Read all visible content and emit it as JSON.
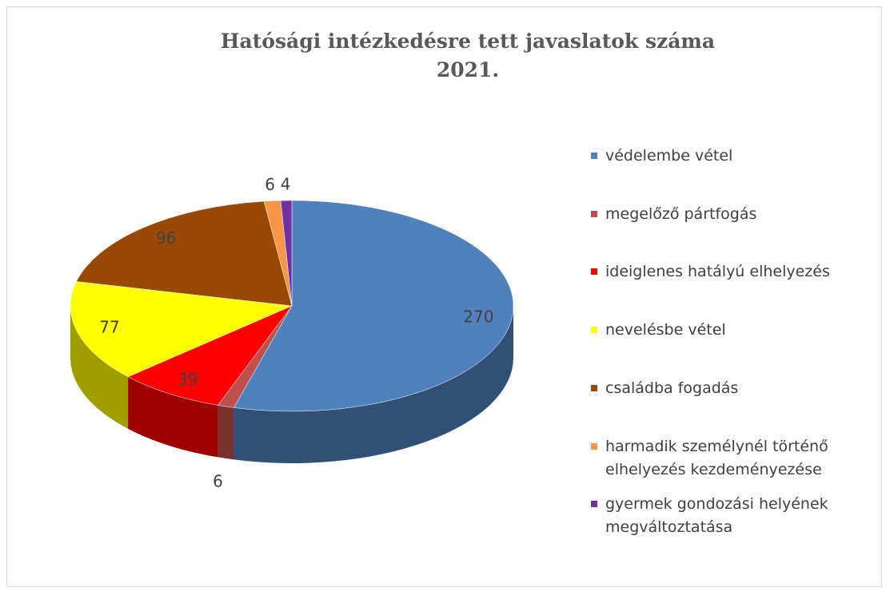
{
  "chart_data": {
    "type": "pie3d",
    "title": "Hatósági intézkedésre tett javaslatok száma",
    "subtitle": "2021.",
    "categories": [
      "védelembe vétel",
      "megelőző pártfogás",
      "ideiglenes hatályú elhelyezés",
      "nevelésbe vétel",
      "családba fogadás",
      "harmadik személynél történő elhelyezés kezdeményezése",
      "gyermek gondozási helyének megváltoztatása"
    ],
    "values": [
      270,
      6,
      39,
      77,
      96,
      6,
      4
    ],
    "colors": [
      "#4f81bd",
      "#c0504d",
      "#ff0000",
      "#ffff00",
      "#984807",
      "#f79646",
      "#7030a0"
    ],
    "legend": "right"
  }
}
